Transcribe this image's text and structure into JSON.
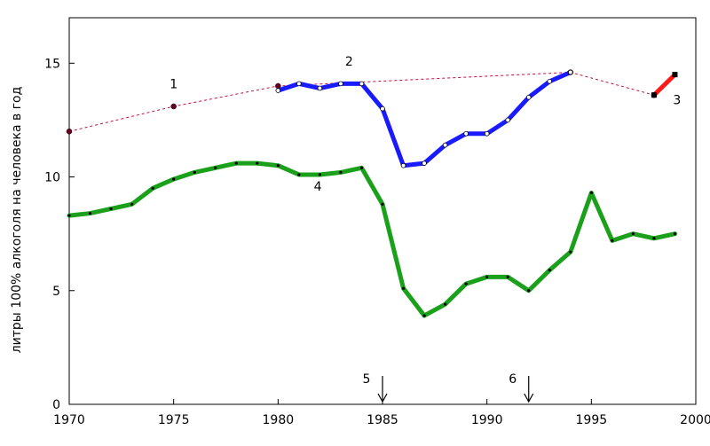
{
  "chart_data": {
    "type": "line",
    "xlabel": "",
    "ylabel": "литры 100% алкоголя на человека в год",
    "xlim": [
      1970,
      2000
    ],
    "ylim": [
      0,
      17
    ],
    "xticks": [
      "1970",
      "1975",
      "1980",
      "1985",
      "1990",
      "1995",
      "2000"
    ],
    "yticks": [
      "0",
      "5",
      "10",
      "15"
    ],
    "grid": false,
    "series": [
      {
        "name": "1",
        "style": "dashed",
        "color": "#c01040",
        "points": [
          [
            1970,
            12.0
          ],
          [
            1975,
            13.1
          ],
          [
            1980,
            14.0
          ],
          [
            1994,
            14.6
          ],
          [
            1998,
            13.6
          ]
        ]
      },
      {
        "name": "2",
        "style": "solid",
        "color": "#1a1aff",
        "points": [
          [
            1980,
            13.8
          ],
          [
            1981,
            14.1
          ],
          [
            1982,
            13.9
          ],
          [
            1983,
            14.1
          ],
          [
            1984,
            14.1
          ],
          [
            1985,
            13.0
          ],
          [
            1986,
            10.5
          ],
          [
            1987,
            10.6
          ],
          [
            1988,
            11.4
          ],
          [
            1989,
            11.9
          ],
          [
            1990,
            11.9
          ],
          [
            1991,
            12.5
          ],
          [
            1992,
            13.5
          ],
          [
            1993,
            14.2
          ],
          [
            1994,
            14.6
          ]
        ]
      },
      {
        "name": "3",
        "style": "solid",
        "color": "#ff1a1a",
        "points": [
          [
            1998,
            13.6
          ],
          [
            1999,
            14.5
          ]
        ]
      },
      {
        "name": "4",
        "style": "solid",
        "color": "#1aa01a",
        "points": [
          [
            1970,
            8.3
          ],
          [
            1971,
            8.4
          ],
          [
            1972,
            8.6
          ],
          [
            1973,
            8.8
          ],
          [
            1974,
            9.5
          ],
          [
            1975,
            9.9
          ],
          [
            1976,
            10.2
          ],
          [
            1977,
            10.4
          ],
          [
            1978,
            10.6
          ],
          [
            1979,
            10.6
          ],
          [
            1980,
            10.5
          ],
          [
            1981,
            10.1
          ],
          [
            1982,
            10.1
          ],
          [
            1983,
            10.2
          ],
          [
            1984,
            10.4
          ],
          [
            1985,
            8.8
          ],
          [
            1986,
            5.1
          ],
          [
            1987,
            3.9
          ],
          [
            1988,
            4.4
          ],
          [
            1989,
            5.3
          ],
          [
            1990,
            5.6
          ],
          [
            1991,
            5.6
          ],
          [
            1992,
            5.0
          ],
          [
            1993,
            5.9
          ],
          [
            1994,
            6.7
          ],
          [
            1995,
            9.3
          ],
          [
            1996,
            7.2
          ],
          [
            1997,
            7.5
          ],
          [
            1998,
            7.3
          ],
          [
            1999,
            7.5
          ]
        ]
      }
    ],
    "series_labels": [
      {
        "text": "1",
        "x": 1975,
        "y": 13.9
      },
      {
        "text": "2",
        "x": 1983.4,
        "y": 14.9
      },
      {
        "text": "3",
        "x": 1999.1,
        "y": 13.2
      },
      {
        "text": "4",
        "x": 1981.9,
        "y": 9.4
      }
    ],
    "events": [
      {
        "label": "5",
        "year": 1985
      },
      {
        "label": "6",
        "year": 1992
      }
    ]
  }
}
